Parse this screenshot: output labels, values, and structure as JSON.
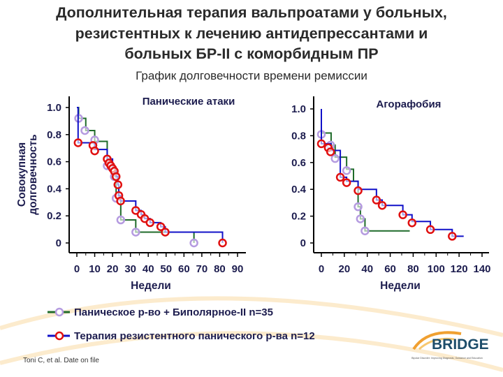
{
  "title_lines": [
    "Дополнительная терапия вальпроатами у больных,",
    "резистентных к лечению антидепрессантами и",
    "больных БР-II с коморбидным ПР"
  ],
  "subtitle": "График долговечности времени ремиссии",
  "y_axis_title_lines": [
    "Совокупная",
    "долговечность"
  ],
  "legend": [
    {
      "label": "Паническое р-во + Биполярное-II n=35",
      "line_color": "#1f6b2a",
      "marker_color": "#b59be0"
    },
    {
      "label": "Терапия резистентного панического р-ва n=12",
      "line_color": "#1010c8",
      "marker_color": "#e01010"
    }
  ],
  "footnote": "Toni C, et al. Date on file",
  "logo": {
    "name": "BRIDGE",
    "tagline": "Bipolar Disorder: Improving Diagnosis, Guidance and Education"
  },
  "chart_data": [
    {
      "type": "line",
      "subtype": "kaplan-meier step",
      "title": "Панические атаки",
      "xlabel": "Недели",
      "ylabel": "Совокупная долговечность",
      "xlim": [
        0,
        90
      ],
      "ylim": [
        0,
        1
      ],
      "x_ticks": [
        "0",
        "10",
        "20",
        "30",
        "40",
        "50",
        "60",
        "70",
        "80",
        "90"
      ],
      "y_ticks": [
        "0",
        "0.2",
        "0.4",
        "0.6",
        "0.8",
        "1.0"
      ],
      "series": [
        {
          "name": "Паническое р-во + Биполярное-II n=35",
          "steps": [
            [
              0,
              1.0
            ],
            [
              1,
              0.92
            ],
            [
              5,
              0.83
            ],
            [
              10,
              0.75
            ],
            [
              17,
              0.57
            ],
            [
              21,
              0.49
            ],
            [
              22,
              0.33
            ],
            [
              24.6,
              0.17
            ],
            [
              33,
              0.08
            ],
            [
              65.6,
              0
            ]
          ],
          "markers": [
            [
              1,
              0.92
            ],
            [
              4.5,
              0.83
            ],
            [
              10,
              0.76
            ],
            [
              17,
              0.57
            ],
            [
              21,
              0.49
            ],
            [
              22,
              0.33
            ],
            [
              24.6,
              0.17
            ],
            [
              33,
              0.08
            ],
            [
              65.6,
              0
            ]
          ]
        },
        {
          "name": "Терапия резистентного панического р-ва n=12",
          "steps": [
            [
              0,
              1.0
            ],
            [
              0.7,
              0.74
            ],
            [
              10,
              0.69
            ],
            [
              17,
              0.62
            ],
            [
              20,
              0.55
            ],
            [
              22,
              0.49
            ],
            [
              23,
              0.43
            ],
            [
              23.5,
              0.35
            ],
            [
              24.6,
              0.31
            ],
            [
              33,
              0.24
            ],
            [
              36,
              0.21
            ],
            [
              38,
              0.18
            ],
            [
              41,
              0.15
            ],
            [
              47,
              0.12
            ],
            [
              49.5,
              0.08
            ],
            [
              81.6,
              0
            ]
          ],
          "markers": [
            [
              0.7,
              0.74
            ],
            [
              9,
              0.72
            ],
            [
              10,
              0.68
            ],
            [
              17,
              0.62
            ],
            [
              18,
              0.59
            ],
            [
              19,
              0.57
            ],
            [
              20,
              0.55
            ],
            [
              21,
              0.53
            ],
            [
              22,
              0.49
            ],
            [
              23,
              0.43
            ],
            [
              23.5,
              0.35
            ],
            [
              24.5,
              0.31
            ],
            [
              33,
              0.24
            ],
            [
              36,
              0.21
            ],
            [
              38,
              0.18
            ],
            [
              41,
              0.15
            ],
            [
              47,
              0.12
            ],
            [
              49.5,
              0.08
            ],
            [
              81.6,
              0
            ]
          ]
        }
      ]
    },
    {
      "type": "line",
      "subtype": "kaplan-meier step",
      "title": "Агорафобия",
      "xlabel": "Недели",
      "ylabel": "Совокупная долговечность",
      "xlim": [
        0,
        140
      ],
      "ylim": [
        0,
        1
      ],
      "x_ticks": [
        "0",
        "20",
        "40",
        "60",
        "80",
        "100",
        "120",
        "140"
      ],
      "y_ticks": [
        "0",
        "0.2",
        "0.4",
        "0.6",
        "0.8",
        "1.0"
      ],
      "series": [
        {
          "name": "Паническое р-во + Биполярное-II n=35",
          "steps": [
            [
              0,
              0.82
            ],
            [
              8.5,
              0.73
            ],
            [
              12,
              0.64
            ],
            [
              22,
              0.55
            ],
            [
              28,
              0.46
            ],
            [
              32,
              0.27
            ],
            [
              34,
              0.18
            ],
            [
              38,
              0.09
            ],
            [
              77,
              0.09
            ]
          ],
          "markers": [
            [
              0,
              0.81
            ],
            [
              8,
              0.73
            ],
            [
              12,
              0.63
            ],
            [
              22,
              0.54
            ],
            [
              32,
              0.27
            ],
            [
              34,
              0.18
            ],
            [
              38,
              0.09
            ]
          ]
        },
        {
          "name": "Терапия резистентного панического р-ва n=12",
          "steps": [
            [
              0,
              1.0
            ],
            [
              0,
              0.74
            ],
            [
              8.5,
              0.69
            ],
            [
              16.5,
              0.49
            ],
            [
              22,
              0.46
            ],
            [
              32,
              0.4
            ],
            [
              48,
              0.32
            ],
            [
              53,
              0.28
            ],
            [
              71,
              0.21
            ],
            [
              79,
              0.16
            ],
            [
              95,
              0.1
            ],
            [
              114,
              0.05
            ],
            [
              124,
              0.05
            ]
          ],
          "markers": [
            [
              0,
              0.74
            ],
            [
              6,
              0.71
            ],
            [
              8,
              0.68
            ],
            [
              16.5,
              0.49
            ],
            [
              22,
              0.45
            ],
            [
              32,
              0.39
            ],
            [
              48,
              0.32
            ],
            [
              53,
              0.28
            ],
            [
              71,
              0.21
            ],
            [
              79,
              0.15
            ],
            [
              95,
              0.1
            ],
            [
              114,
              0.05
            ]
          ]
        }
      ]
    }
  ]
}
